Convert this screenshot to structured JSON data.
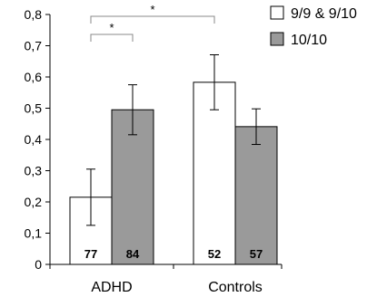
{
  "chart_data": {
    "type": "bar",
    "categories": [
      "ADHD",
      "Controls"
    ],
    "series": [
      {
        "name": "9/9 & 9/10",
        "color": "#ffffff",
        "values": [
          0.215,
          0.583
        ],
        "error": [
          0.09,
          0.088
        ],
        "n": [
          "77",
          "52"
        ]
      },
      {
        "name": "10/10",
        "color": "#9a9a9a",
        "values": [
          0.495,
          0.441
        ],
        "error": [
          0.08,
          0.057
        ],
        "n": [
          "84",
          "57"
        ]
      }
    ],
    "ylim": [
      0,
      0.8
    ],
    "yticks": [
      "0",
      "0,1",
      "0,2",
      "0,3",
      "0,4",
      "0,5",
      "0,6",
      "0,7",
      "0,8"
    ],
    "legend_position": "top-right",
    "significance": [
      {
        "label": "*",
        "from": "ADHD 9/9 & 9/10",
        "to": "ADHD 10/10"
      },
      {
        "label": "*",
        "from": "ADHD 9/9 & 9/10",
        "to": "Controls 9/9 & 9/10"
      }
    ],
    "xlabel": "",
    "ylabel": "",
    "title": ""
  }
}
